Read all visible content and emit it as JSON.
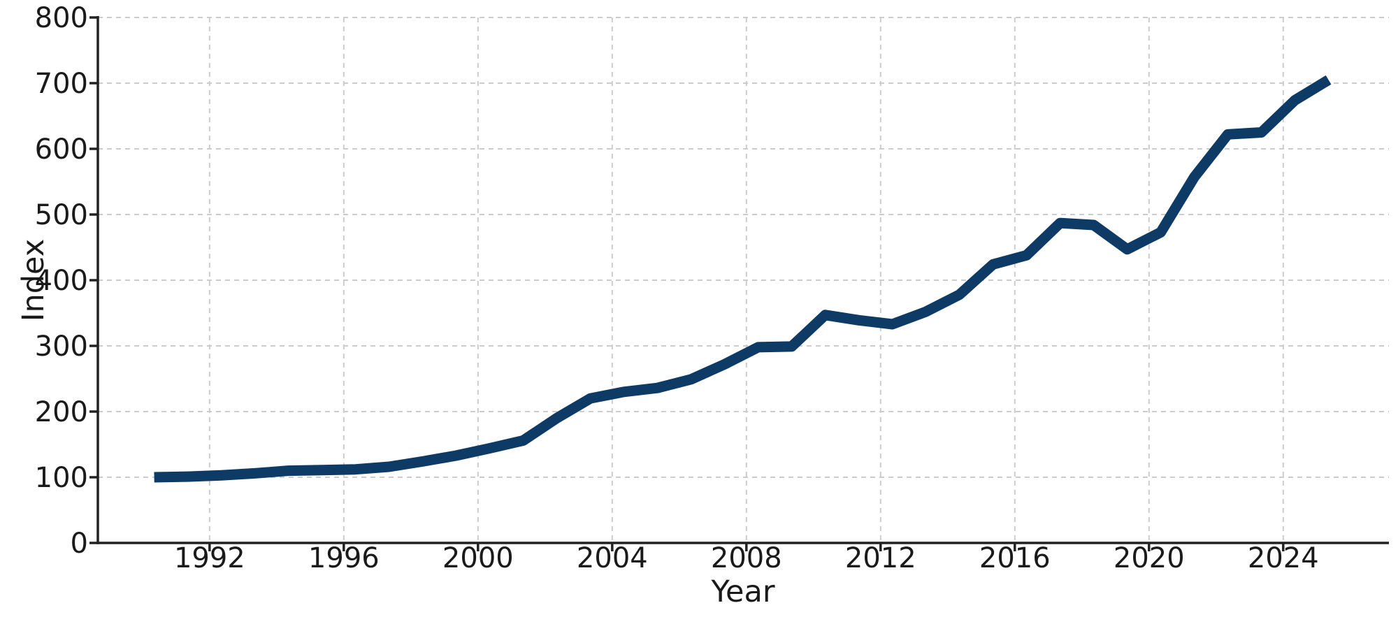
{
  "figure": {
    "background": "#ffffff"
  },
  "chart_data": {
    "type": "line",
    "title": "",
    "xlabel": "Year",
    "ylabel": "Index",
    "x_ticks": [
      1992,
      1996,
      2000,
      2004,
      2008,
      2012,
      2016,
      2020,
      2024
    ],
    "y_ticks": [
      0,
      100,
      200,
      300,
      400,
      500,
      600,
      700,
      800
    ],
    "xlim": [
      1988.67,
      2027.15
    ],
    "ylim": [
      0,
      800
    ],
    "grid": {
      "show": true,
      "style": "dashed",
      "color": "#cccccc"
    },
    "legend": {
      "show": false
    },
    "axis_color": "#222222",
    "text_color": "#1a1a1a",
    "series": [
      {
        "name": "Index",
        "color": "#0e3b66",
        "x_offset_years": 0.35,
        "years": [
          1990,
          1991,
          1992,
          1993,
          1994,
          1995,
          1996,
          1997,
          1998,
          1999,
          2000,
          2001,
          2002,
          2003,
          2004,
          2005,
          2006,
          2007,
          2008,
          2009,
          2010,
          2011,
          2012,
          2013,
          2014,
          2015,
          2016,
          2017,
          2018,
          2019,
          2020,
          2021,
          2022,
          2023,
          2024,
          2025
        ],
        "values": [
          100,
          101,
          103,
          106,
          110,
          111,
          112,
          116,
          124,
          133,
          144,
          156,
          190,
          220,
          230,
          236,
          249,
          272,
          298,
          299,
          347,
          339,
          333,
          352,
          378,
          424,
          438,
          487,
          484,
          447,
          473,
          557,
          622,
          625,
          674,
          705
        ]
      }
    ]
  }
}
